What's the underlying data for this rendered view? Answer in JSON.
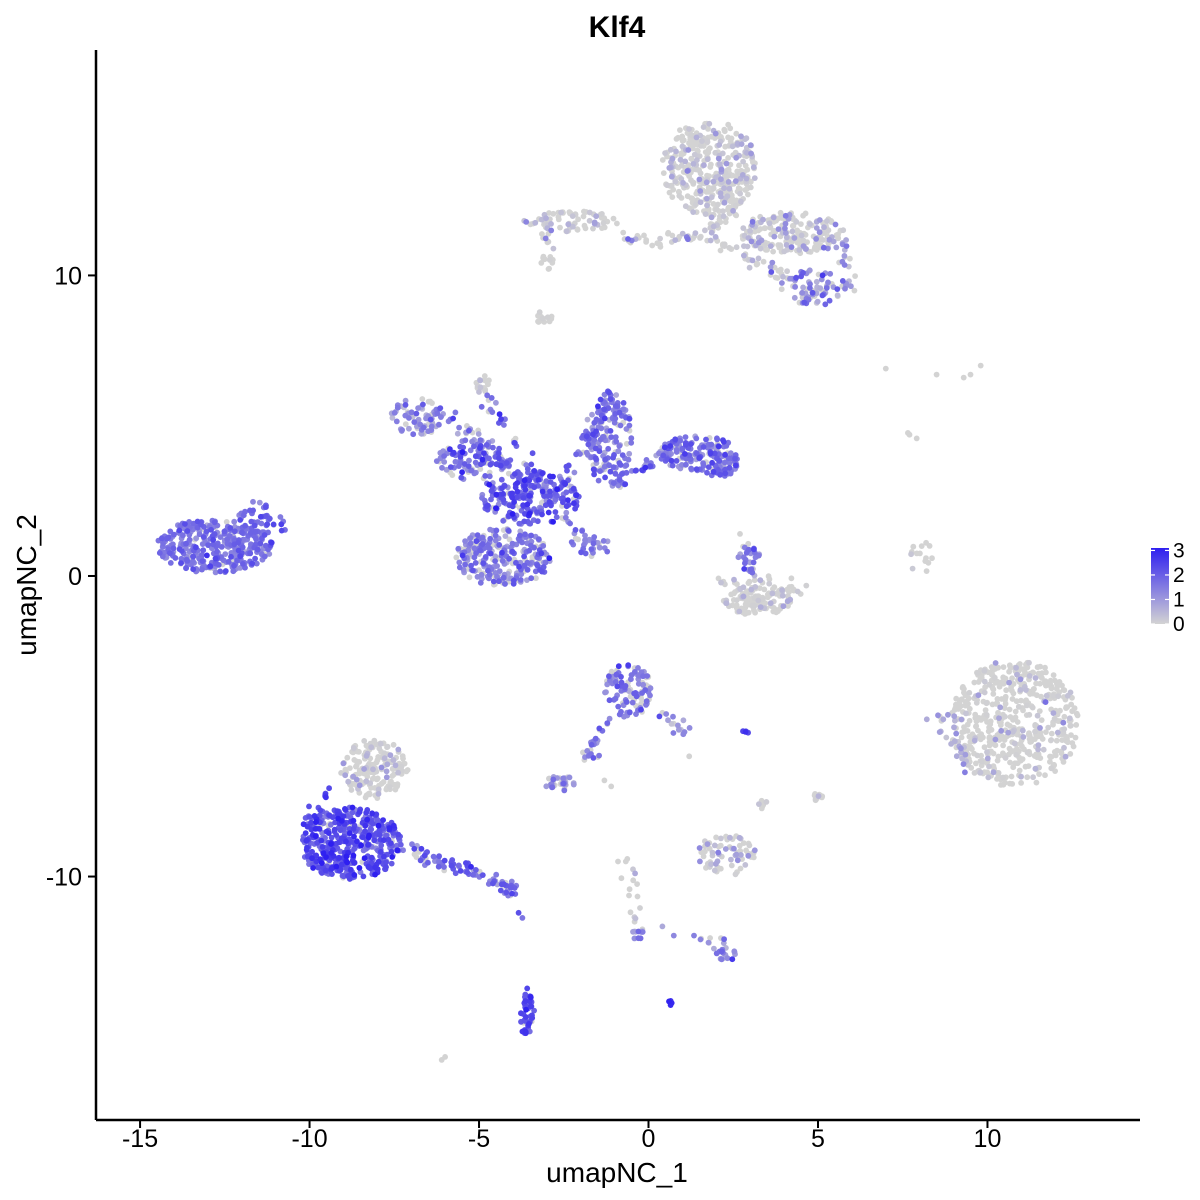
{
  "chart_data": {
    "type": "scatter",
    "title": "Klf4",
    "xlabel": "umapNC_1",
    "ylabel": "umapNC_2",
    "xlim": [
      -16.3,
      14.5
    ],
    "ylim": [
      -18.1,
      17.5
    ],
    "xticks": [
      -15,
      -10,
      -5,
      0,
      5,
      10
    ],
    "yticks": [
      -10,
      0,
      10
    ],
    "grid": false,
    "color_scale": {
      "low": "#d3d3d3",
      "high": "#2e1ff0",
      "min": 0,
      "max": 3.1,
      "breaks": [
        0,
        1,
        2,
        3
      ]
    },
    "legend_position": "right",
    "clusters": [
      {
        "cx": -12.8,
        "cy": 1.0,
        "rx": 1.7,
        "ry": 0.9,
        "n": 330,
        "expr_mean": 1.6,
        "expr_sd": 0.4,
        "zero_frac": 0.08
      },
      {
        "cx": -11.8,
        "cy": 1.6,
        "rx": 0.6,
        "ry": 0.6,
        "n": 40,
        "expr_mean": 1.8,
        "expr_sd": 0.3,
        "zero_frac": 0.05
      },
      {
        "cx": -4.3,
        "cy": 0.6,
        "rx": 1.4,
        "ry": 1.0,
        "n": 260,
        "expr_mean": 1.5,
        "expr_sd": 0.5,
        "zero_frac": 0.2
      },
      {
        "cx": -3.5,
        "cy": 2.6,
        "rx": 1.5,
        "ry": 0.9,
        "n": 200,
        "expr_mean": 2.0,
        "expr_sd": 0.5,
        "zero_frac": 0.1
      },
      {
        "cx": -5.2,
        "cy": 3.8,
        "rx": 1.2,
        "ry": 0.6,
        "n": 90,
        "expr_mean": 1.7,
        "expr_sd": 0.5,
        "zero_frac": 0.15
      },
      {
        "cx": -6.8,
        "cy": 5.3,
        "rx": 0.8,
        "ry": 0.6,
        "n": 70,
        "expr_mean": 1.2,
        "expr_sd": 0.5,
        "zero_frac": 0.3
      },
      {
        "cx": -1.2,
        "cy": 4.6,
        "rx": 0.7,
        "ry": 1.6,
        "n": 150,
        "expr_mean": 1.6,
        "expr_sd": 0.5,
        "zero_frac": 0.15
      },
      {
        "cx": 1.5,
        "cy": 4.1,
        "rx": 1.2,
        "ry": 0.6,
        "n": 130,
        "expr_mean": 1.6,
        "expr_sd": 0.5,
        "zero_frac": 0.15
      },
      {
        "cx": 2.1,
        "cy": 3.7,
        "rx": 0.5,
        "ry": 0.4,
        "n": 40,
        "expr_mean": 1.7,
        "expr_sd": 0.4,
        "zero_frac": 0.1
      },
      {
        "cx": -1.7,
        "cy": 1.0,
        "rx": 0.6,
        "ry": 0.4,
        "n": 20,
        "expr_mean": 1.6,
        "expr_sd": 0.4,
        "zero_frac": 0.1
      },
      {
        "cx": -4.9,
        "cy": 6.4,
        "rx": 0.2,
        "ry": 0.4,
        "n": 18,
        "expr_mean": 0.3,
        "expr_sd": 0.3,
        "zero_frac": 0.7
      },
      {
        "cx": 1.8,
        "cy": 13.6,
        "rx": 1.4,
        "ry": 1.6,
        "n": 380,
        "expr_mean": 0.3,
        "expr_sd": 0.4,
        "zero_frac": 0.65
      },
      {
        "cx": 4.2,
        "cy": 11.4,
        "rx": 1.5,
        "ry": 0.7,
        "n": 200,
        "expr_mean": 0.4,
        "expr_sd": 0.5,
        "zero_frac": 0.6
      },
      {
        "cx": 4.9,
        "cy": 9.6,
        "rx": 1.0,
        "ry": 0.6,
        "n": 70,
        "expr_mean": 1.2,
        "expr_sd": 0.5,
        "zero_frac": 0.25
      },
      {
        "cx": -2.3,
        "cy": 11.8,
        "rx": 1.4,
        "ry": 0.35,
        "n": 70,
        "expr_mean": 0.4,
        "expr_sd": 0.5,
        "zero_frac": 0.6
      },
      {
        "cx": -3.0,
        "cy": 10.5,
        "rx": 0.2,
        "ry": 0.3,
        "n": 10,
        "expr_mean": 0.1,
        "expr_sd": 0.2,
        "zero_frac": 0.8
      },
      {
        "cx": -3.1,
        "cy": 8.6,
        "rx": 0.25,
        "ry": 0.2,
        "n": 14,
        "expr_mean": 0.1,
        "expr_sd": 0.2,
        "zero_frac": 0.8
      },
      {
        "cx": 3.2,
        "cy": -0.8,
        "rx": 1.0,
        "ry": 0.5,
        "n": 120,
        "expr_mean": 0.2,
        "expr_sd": 0.3,
        "zero_frac": 0.75
      },
      {
        "cx": 3.0,
        "cy": 0.6,
        "rx": 0.35,
        "ry": 0.5,
        "n": 30,
        "expr_mean": 1.5,
        "expr_sd": 0.5,
        "zero_frac": 0.15
      },
      {
        "cx": 10.8,
        "cy": -4.9,
        "rx": 1.9,
        "ry": 2.1,
        "n": 520,
        "expr_mean": 0.2,
        "expr_sd": 0.4,
        "zero_frac": 0.8
      },
      {
        "cx": -0.6,
        "cy": -3.8,
        "rx": 0.7,
        "ry": 0.9,
        "n": 110,
        "expr_mean": 1.5,
        "expr_sd": 0.5,
        "zero_frac": 0.35
      },
      {
        "cx": -2.6,
        "cy": -6.9,
        "rx": 0.45,
        "ry": 0.25,
        "n": 35,
        "expr_mean": 1.0,
        "expr_sd": 0.4,
        "zero_frac": 0.3
      },
      {
        "cx": -8.8,
        "cy": -8.9,
        "rx": 1.5,
        "ry": 1.2,
        "n": 430,
        "expr_mean": 2.2,
        "expr_sd": 0.5,
        "zero_frac": 0.05
      },
      {
        "cx": -8.1,
        "cy": -6.4,
        "rx": 1.0,
        "ry": 1.0,
        "n": 170,
        "expr_mean": 0.3,
        "expr_sd": 0.5,
        "zero_frac": 0.65
      },
      {
        "cx": 2.3,
        "cy": -9.3,
        "rx": 0.9,
        "ry": 0.7,
        "n": 70,
        "expr_mean": 0.6,
        "expr_sd": 0.5,
        "zero_frac": 0.45
      },
      {
        "cx": -3.6,
        "cy": -14.6,
        "rx": 0.25,
        "ry": 0.7,
        "n": 40,
        "expr_mean": 2.3,
        "expr_sd": 0.4,
        "zero_frac": 0.05
      },
      {
        "cx": 2.3,
        "cy": -12.6,
        "rx": 0.3,
        "ry": 0.2,
        "n": 14,
        "expr_mean": 1.6,
        "expr_sd": 0.4,
        "zero_frac": 0.1
      },
      {
        "cx": 5.0,
        "cy": -7.4,
        "rx": 0.2,
        "ry": 0.2,
        "n": 10,
        "expr_mean": 0.2,
        "expr_sd": 0.3,
        "zero_frac": 0.7
      },
      {
        "cx": -0.3,
        "cy": -11.9,
        "rx": 0.2,
        "ry": 0.2,
        "n": 10,
        "expr_mean": 1.2,
        "expr_sd": 0.4,
        "zero_frac": 0.2
      },
      {
        "cx": 8.0,
        "cy": 0.6,
        "rx": 0.4,
        "ry": 0.6,
        "n": 14,
        "expr_mean": 0.05,
        "expr_sd": 0.1,
        "zero_frac": 0.95
      },
      {
        "cx": 3.4,
        "cy": -7.6,
        "rx": 0.15,
        "ry": 0.15,
        "n": 6,
        "expr_mean": 0.2,
        "expr_sd": 0.3,
        "zero_frac": 0.7
      },
      {
        "cx": 0.6,
        "cy": -14.2,
        "rx": 0.1,
        "ry": 0.1,
        "n": 4,
        "expr_mean": 2.8,
        "expr_sd": 0.2,
        "zero_frac": 0.0
      },
      {
        "cx": 2.9,
        "cy": -5.2,
        "rx": 0.15,
        "ry": 0.06,
        "n": 4,
        "expr_mean": 2.5,
        "expr_sd": 0.3,
        "zero_frac": 0.0
      }
    ],
    "trails": [
      {
        "from": [
          -11.5,
          2.4
        ],
        "to": [
          -10.6,
          1.4
        ],
        "n": 18,
        "expr_mean": 1.9,
        "expr_sd": 0.4,
        "zero_frac": 0.05
      },
      {
        "from": [
          -4.8,
          6.0
        ],
        "to": [
          -2.8,
          2.4
        ],
        "n": 40,
        "expr_mean": 1.7,
        "expr_sd": 0.5,
        "zero_frac": 0.1
      },
      {
        "from": [
          -2.6,
          2.0
        ],
        "to": [
          -1.3,
          0.8
        ],
        "n": 22,
        "expr_mean": 1.5,
        "expr_sd": 0.5,
        "zero_frac": 0.1
      },
      {
        "from": [
          -5.6,
          4.8
        ],
        "to": [
          -3.2,
          2.8
        ],
        "n": 40,
        "expr_mean": 1.6,
        "expr_sd": 0.5,
        "zero_frac": 0.15
      },
      {
        "from": [
          -1.0,
          3.0
        ],
        "to": [
          1.0,
          4.4
        ],
        "n": 50,
        "expr_mean": 1.6,
        "expr_sd": 0.5,
        "zero_frac": 0.15
      },
      {
        "from": [
          -2.6,
          3.0
        ],
        "to": [
          -1.2,
          5.8
        ],
        "n": 40,
        "expr_mean": 1.7,
        "expr_sd": 0.5,
        "zero_frac": 0.15
      },
      {
        "from": [
          -6.0,
          5.6
        ],
        "to": [
          -4.2,
          3.6
        ],
        "n": 30,
        "expr_mean": 1.4,
        "expr_sd": 0.5,
        "zero_frac": 0.2
      },
      {
        "from": [
          -0.8,
          11.2
        ],
        "to": [
          2.0,
          11.3
        ],
        "n": 40,
        "expr_mean": 0.5,
        "expr_sd": 0.5,
        "zero_frac": 0.5
      },
      {
        "from": [
          2.2,
          11.0
        ],
        "to": [
          4.4,
          9.8
        ],
        "n": 40,
        "expr_mean": 0.5,
        "expr_sd": 0.5,
        "zero_frac": 0.5
      },
      {
        "from": [
          5.5,
          11.5
        ],
        "to": [
          6.0,
          9.7
        ],
        "n": 20,
        "expr_mean": 0.9,
        "expr_sd": 0.5,
        "zero_frac": 0.3
      },
      {
        "from": [
          1.8,
          11.5
        ],
        "to": [
          2.8,
          12.6
        ],
        "n": 30,
        "expr_mean": 0.3,
        "expr_sd": 0.4,
        "zero_frac": 0.6
      },
      {
        "from": [
          -7.3,
          -9.0
        ],
        "to": [
          -4.0,
          -10.4
        ],
        "n": 80,
        "expr_mean": 1.8,
        "expr_sd": 0.5,
        "zero_frac": 0.1
      },
      {
        "from": [
          -4.0,
          -10.3
        ],
        "to": [
          -3.8,
          -11.8
        ],
        "n": 6,
        "expr_mean": 1.9,
        "expr_sd": 0.4,
        "zero_frac": 0.1
      },
      {
        "from": [
          -1.6,
          -5.4
        ],
        "to": [
          -1.8,
          -6.2
        ],
        "n": 12,
        "expr_mean": 1.4,
        "expr_sd": 0.5,
        "zero_frac": 0.2
      },
      {
        "from": [
          -1.3,
          -4.7
        ],
        "to": [
          -1.8,
          -6.2
        ],
        "n": 12,
        "expr_mean": 1.4,
        "expr_sd": 0.5,
        "zero_frac": 0.2
      },
      {
        "from": [
          0.2,
          -4.2
        ],
        "to": [
          1.2,
          -5.4
        ],
        "n": 16,
        "expr_mean": 1.1,
        "expr_sd": 0.5,
        "zero_frac": 0.35
      },
      {
        "from": [
          -0.6,
          -9.4
        ],
        "to": [
          -0.3,
          -11.8
        ],
        "n": 16,
        "expr_mean": 0.4,
        "expr_sd": 0.5,
        "zero_frac": 0.55
      },
      {
        "from": [
          0.4,
          -11.6
        ],
        "to": [
          2.4,
          -12.4
        ],
        "n": 14,
        "expr_mean": 1.0,
        "expr_sd": 0.5,
        "zero_frac": 0.3
      },
      {
        "from": [
          -3.7,
          -13.7
        ],
        "to": [
          -3.6,
          -14.6
        ],
        "n": 8,
        "expr_mean": 2.4,
        "expr_sd": 0.3,
        "zero_frac": 0.0
      },
      {
        "from": [
          8.4,
          -4.4
        ],
        "to": [
          9.6,
          -6.6
        ],
        "n": 25,
        "expr_mean": 0.6,
        "expr_sd": 0.5,
        "zero_frac": 0.5
      },
      {
        "from": [
          2.0,
          -0.1
        ],
        "to": [
          4.5,
          -0.4
        ],
        "n": 30,
        "expr_mean": 0.3,
        "expr_sd": 0.4,
        "zero_frac": 0.65
      },
      {
        "from": [
          -10.2,
          -8.4
        ],
        "to": [
          -9.4,
          -7.2
        ],
        "n": 20,
        "expr_mean": 2.3,
        "expr_sd": 0.4,
        "zero_frac": 0.05
      },
      {
        "from": [
          -3.0,
          10.8
        ],
        "to": [
          -3.1,
          11.9
        ],
        "n": 8,
        "expr_mean": 0.8,
        "expr_sd": 0.5,
        "zero_frac": 0.4
      },
      {
        "from": [
          7.8,
          4.8
        ],
        "to": [
          7.9,
          4.6
        ],
        "n": 2,
        "expr_mean": 0.0,
        "expr_sd": 0.0,
        "zero_frac": 1.0
      }
    ],
    "singletons": [
      [
        7.0,
        6.9
      ],
      [
        8.5,
        6.7
      ],
      [
        9.5,
        6.7
      ],
      [
        9.8,
        7.0
      ],
      [
        9.3,
        6.6
      ],
      [
        -6.1,
        -16.1
      ],
      [
        -6.0,
        -16.0
      ],
      [
        2.7,
        1.4
      ],
      [
        1.2,
        -6.0
      ],
      [
        -1.1,
        -7.0
      ],
      [
        -0.9,
        -9.5
      ],
      [
        -1.3,
        -6.8
      ],
      [
        7.7,
        4.7
      ],
      [
        4.9,
        -7.3
      ]
    ]
  }
}
